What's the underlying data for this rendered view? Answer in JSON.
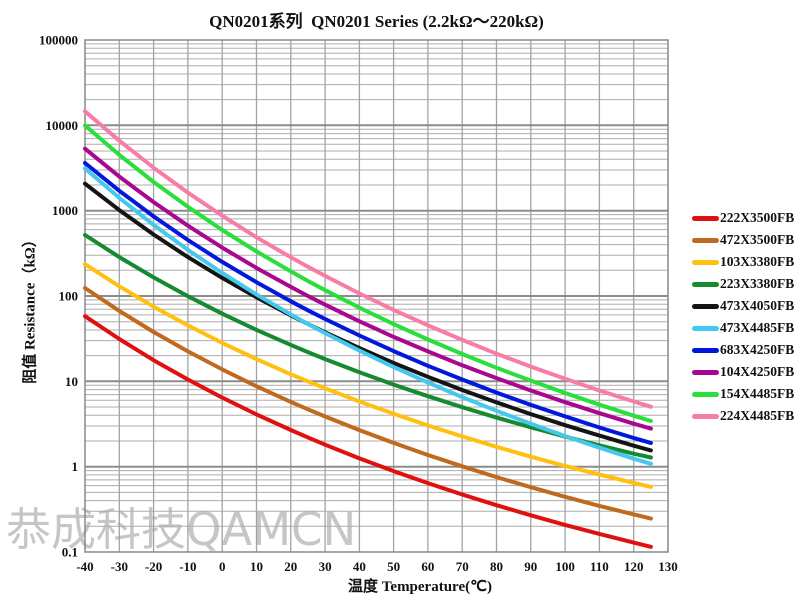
{
  "title": "QN0201系列  QN0201 Series (2.2kΩ～220kΩ)",
  "watermark": "恭成科技QAMCN",
  "axes": {
    "x_label": "温度 Temperature(℃)",
    "y_label": "阻值 Resistance（kΩ）",
    "x_ticks": [
      -40,
      -30,
      -20,
      -10,
      0,
      10,
      20,
      30,
      40,
      50,
      60,
      70,
      80,
      90,
      100,
      110,
      120,
      130
    ],
    "y_ticks": [
      "100000",
      "10000",
      "1000",
      "100",
      "10",
      "1",
      "0.1"
    ]
  },
  "chart_data": {
    "type": "line",
    "title": "QN0201系列  QN0201 Series (2.2kΩ～220kΩ)",
    "xlabel": "温度 Temperature(℃)",
    "ylabel": "阻值 Resistance（kΩ）",
    "x_unit": "°C",
    "y_unit": "kΩ",
    "xlim": [
      -40,
      130
    ],
    "ylim": [
      0.1,
      100000
    ],
    "y_scale": "log",
    "grid": true,
    "legend_position": "right-outside",
    "x": [
      -40,
      -30,
      -20,
      -10,
      0,
      10,
      20,
      25,
      30,
      40,
      50,
      60,
      70,
      80,
      90,
      100,
      110,
      120,
      125
    ],
    "series": [
      {
        "name": "222X3500FB",
        "color": "#E01010",
        "values": [
          58.0,
          31.3,
          17.7,
          10.5,
          6.44,
          4.1,
          2.69,
          2.2,
          1.81,
          1.25,
          0.887,
          0.641,
          0.472,
          0.354,
          0.269,
          0.208,
          0.163,
          0.129,
          0.115
        ]
      },
      {
        "name": "472X3500FB",
        "color": "#C06A20",
        "values": [
          124,
          66.9,
          37.9,
          22.4,
          13.8,
          8.75,
          5.74,
          4.7,
          3.87,
          2.68,
          1.9,
          1.37,
          1.01,
          0.755,
          0.575,
          0.443,
          0.347,
          0.276,
          0.246
        ]
      },
      {
        "name": "103X3380FB",
        "color": "#FFC010",
        "values": [
          236,
          130,
          75.0,
          45.2,
          28.2,
          18.2,
          12.1,
          10.0,
          8.29,
          5.81,
          4.16,
          3.04,
          2.26,
          1.71,
          1.31,
          1.02,
          0.809,
          0.646,
          0.58
        ]
      },
      {
        "name": "223X3380FB",
        "color": "#168A30",
        "values": [
          519,
          286,
          165,
          99.4,
          62.1,
          40.1,
          26.7,
          22.0,
          18.2,
          12.8,
          9.15,
          6.69,
          4.97,
          3.76,
          2.89,
          2.25,
          1.78,
          1.42,
          1.28
        ]
      },
      {
        "name": "473X4050FB",
        "color": "#141414",
        "values": [
          2070,
          1015,
          526,
          286,
          163,
          96.5,
          59.3,
          47.0,
          37.6,
          24.5,
          16.4,
          11.3,
          7.91,
          5.67,
          4.13,
          3.06,
          2.31,
          1.76,
          1.55
        ]
      },
      {
        "name": "473X4485FB",
        "color": "#45C8EE",
        "values": [
          3120,
          1410,
          681,
          347,
          186,
          104,
          60.7,
          47.0,
          36.7,
          22.9,
          14.7,
          9.68,
          6.54,
          4.52,
          3.19,
          2.28,
          1.67,
          1.24,
          1.08
        ]
      },
      {
        "name": "683X4250FB",
        "color": "#0018DC",
        "values": [
          3620,
          1710,
          857,
          453,
          251,
          145,
          86.7,
          68.0,
          53.8,
          34.4,
          22.6,
          15.2,
          10.5,
          7.38,
          5.3,
          3.88,
          2.88,
          2.17,
          1.9
        ]
      },
      {
        "name": "104X4250FB",
        "color": "#A80890",
        "values": [
          5320,
          2510,
          1260,
          666,
          369,
          213,
          128,
          100,
          79.1,
          50.5,
          33.2,
          22.4,
          15.4,
          10.9,
          7.8,
          5.7,
          4.23,
          3.19,
          2.79
        ]
      },
      {
        "name": "154X4485FB",
        "color": "#2ADE3C",
        "values": [
          9950,
          4500,
          2170,
          1110,
          594,
          333,
          194,
          150,
          117,
          73.0,
          46.8,
          30.9,
          20.9,
          14.4,
          10.2,
          7.29,
          5.33,
          3.96,
          3.43
        ]
      },
      {
        "name": "224X4485FB",
        "color": "#F87CA8",
        "values": [
          14600,
          6600,
          3190,
          1630,
          872,
          488,
          284,
          220,
          172,
          107,
          68.7,
          45.3,
          30.6,
          21.1,
          14.9,
          10.7,
          7.81,
          5.81,
          5.03
        ]
      }
    ]
  },
  "style": {
    "grid_minor_color": "#ADADAD",
    "grid_major_color": "#8C8C8C",
    "grid_vertical_color": "#A3A3A3",
    "border_color": "#888888",
    "watermark_color": "#C6C6C6",
    "text_color": "#111111"
  }
}
